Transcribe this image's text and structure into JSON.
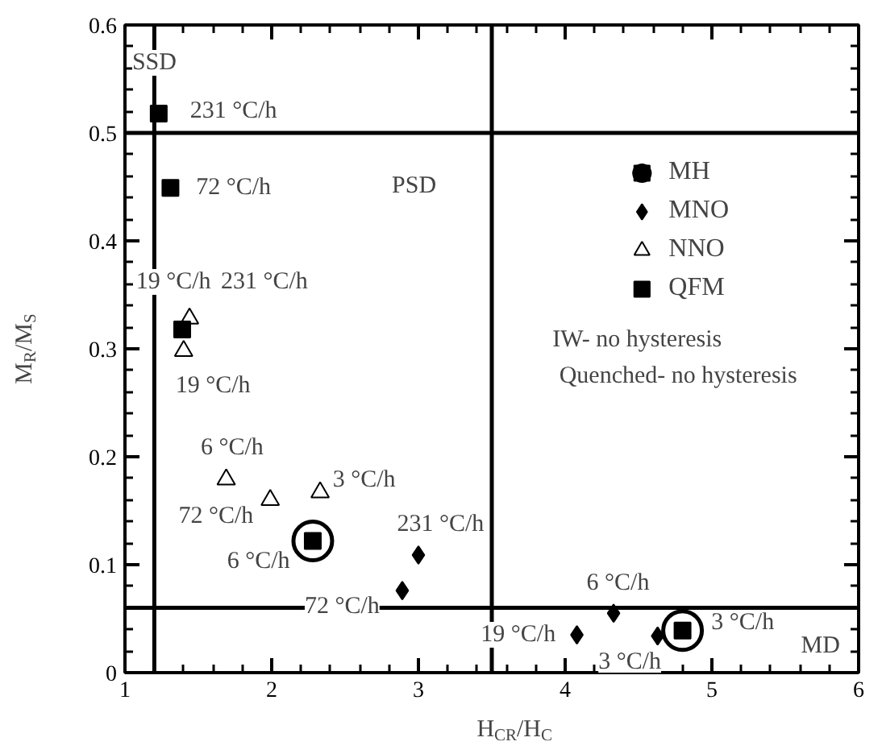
{
  "chart_data": {
    "type": "scatter",
    "xlabel": "H$_{CR}$/H$_{C}$",
    "ylabel": "M$_{R}$/M$_{S}$",
    "xlim": [
      1,
      6
    ],
    "ylim": [
      0,
      0.6
    ],
    "xticks": [
      1,
      2,
      3,
      4,
      5,
      6
    ],
    "yticks": [
      0,
      0.1,
      0.2,
      0.3,
      0.4,
      0.5,
      0.6
    ],
    "grid": false,
    "legend": "top right",
    "series": [
      {
        "name": "MH",
        "color": "#000000",
        "marker": "circle",
        "x": [
          2.28,
          4.8
        ],
        "values": [
          0.122,
          0.039
        ]
      },
      {
        "name": "MNO",
        "color": "#000000",
        "marker": "diamond",
        "x": [
          3.0,
          2.89,
          4.33,
          4.08,
          4.63
        ],
        "values": [
          0.109,
          0.076,
          0.055,
          0.035,
          0.034
        ]
      },
      {
        "name": "NNO",
        "color": "#000000",
        "marker": "triangle",
        "x": [
          1.44,
          1.4,
          1.69,
          1.99,
          2.33
        ],
        "values": [
          0.328,
          0.298,
          0.179,
          0.16,
          0.167
        ]
      },
      {
        "name": "QFM",
        "color": "#000000",
        "marker": "square",
        "x": [
          1.23,
          1.31,
          1.39
        ],
        "values": [
          0.518,
          0.449,
          0.318
        ]
      }
    ],
    "ref_lines": [
      {
        "axis": "x",
        "value": 1.2
      },
      {
        "axis": "x",
        "value": 3.5
      },
      {
        "axis": "y",
        "value": 0.5
      },
      {
        "axis": "y",
        "value": 0.06
      }
    ],
    "annotations": [
      {
        "text": "SSD",
        "x": 1.2,
        "y": 0.565
      },
      {
        "text": "PSD",
        "x": 2.97,
        "y": 0.451
      },
      {
        "text": "MD",
        "x": 5.74,
        "y": 0.025
      },
      "231 °C/h",
      "72 °C/h",
      "19 °C/h",
      "231 °C/h",
      "19 °C/h",
      {
        "text": "6 °C/h",
        "x": 1.73,
        "y": 0.208
      },
      "72 °C/h",
      {
        "text": "3 °C/h",
        "x": 2.63,
        "y": 0.178
      },
      {
        "text": "6 °C/h",
        "x": 1.91,
        "y": 0.103
      },
      "231 °C/h",
      {
        "text": "72 °C/h",
        "x": 2.48,
        "y": 0.061
      },
      "19 °C/h",
      {
        "text": "6 °C/h",
        "x": 4.36,
        "y": 0.083
      },
      {
        "text": "3 °C/h",
        "x": 4.44,
        "y": 0.01
      },
      {
        "text": "3 °C/h",
        "x": 5.21,
        "y": 0.046
      },
      "IW- no hysteresis",
      "Quenched- no hysteresis"
    ]
  }
}
